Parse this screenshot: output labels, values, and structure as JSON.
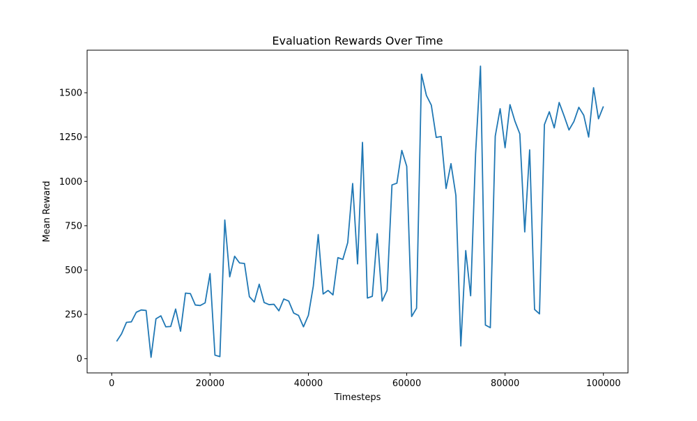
{
  "chart_data": {
    "type": "line",
    "title": "Evaluation Rewards Over Time",
    "xlabel": "Timesteps",
    "ylabel": "Mean Reward",
    "xlim": [
      -5000,
      105000
    ],
    "ylim": [
      -80,
      1740
    ],
    "xticks": [
      0,
      20000,
      40000,
      60000,
      80000,
      100000
    ],
    "yticks": [
      0,
      250,
      500,
      750,
      1000,
      1250,
      1500
    ],
    "grid": false,
    "line_color": "#1f77b4",
    "series": [
      {
        "x": [
          1000,
          2000,
          3000,
          4000,
          5000,
          6000,
          7000,
          8000,
          9000,
          10000,
          11000,
          12000,
          13000,
          14000,
          15000,
          16000,
          17000,
          18000,
          19000,
          20000,
          21000,
          22000,
          23000,
          24000,
          25000,
          26000,
          27000,
          28000,
          29000,
          30000,
          31000,
          32000,
          33000,
          34000,
          35000,
          36000,
          37000,
          38000,
          39000,
          40000,
          41000,
          42000,
          43000,
          44000,
          45000,
          46000,
          47000,
          48000,
          49000,
          50000,
          51000,
          52000,
          53000,
          54000,
          55000,
          56000,
          57000,
          58000,
          59000,
          60000,
          61000,
          62000,
          63000,
          64000,
          65000,
          66000,
          67000,
          68000,
          69000,
          70000,
          71000,
          72000,
          73000,
          74000,
          75000,
          76000,
          77000,
          78000,
          79000,
          80000,
          81000,
          82000,
          83000,
          84000,
          85000,
          86000,
          87000,
          88000,
          89000,
          90000,
          91000,
          92000,
          93000,
          94000,
          95000,
          96000,
          97000,
          98000,
          99000,
          100000
        ],
        "y": [
          98,
          140,
          205,
          208,
          262,
          275,
          272,
          8,
          225,
          242,
          180,
          182,
          280,
          155,
          370,
          367,
          303,
          300,
          315,
          480,
          20,
          12,
          782,
          462,
          578,
          540,
          537,
          350,
          320,
          420,
          317,
          305,
          307,
          270,
          337,
          325,
          258,
          244,
          180,
          245,
          410,
          700,
          365,
          385,
          360,
          570,
          560,
          655,
          988,
          535,
          1220,
          342,
          352,
          705,
          325,
          385,
          980,
          990,
          1175,
          1085,
          238,
          285,
          1605,
          1485,
          1430,
          1248,
          1253,
          960,
          1100,
          920,
          72,
          610,
          355,
          1155,
          1650,
          190,
          175,
          1255,
          1410,
          1190,
          1433,
          1340,
          1268,
          715,
          1178,
          278,
          253,
          1320,
          1393,
          1302,
          1445,
          1370,
          1290,
          1338,
          1418,
          1373,
          1250,
          1528,
          1353,
          1423
        ]
      }
    ]
  }
}
